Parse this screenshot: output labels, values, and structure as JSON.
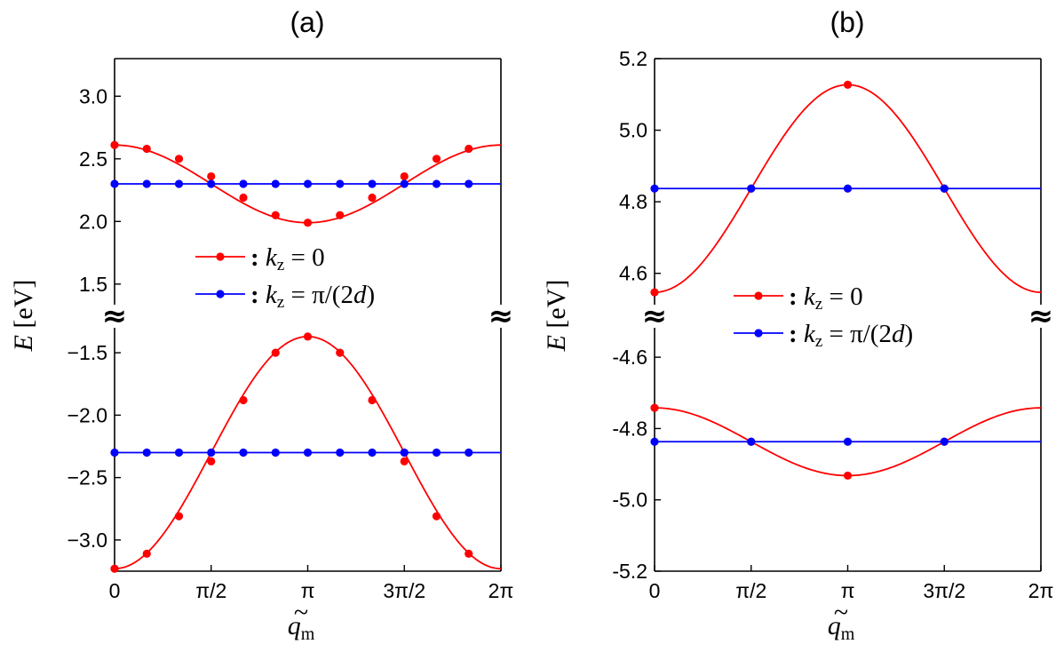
{
  "chart_data": [
    {
      "type": "line",
      "panel_label": "(a)",
      "ylabel_italic": "E",
      "ylabel_unit": "[eV]",
      "xlabel_symbol": "q",
      "xlabel_tilde": "~",
      "xlabel_sub": "m",
      "xlim": [
        0,
        6.2832
      ],
      "x_ticks": [
        {
          "value": 0,
          "label": "0"
        },
        {
          "value": 1.5708,
          "label": "π/2"
        },
        {
          "value": 3.1416,
          "label": "π"
        },
        {
          "value": 4.7124,
          "label": "3π/2"
        },
        {
          "value": 6.2832,
          "label": "2π"
        }
      ],
      "break_symbol": "≈",
      "upper": {
        "ylim": [
          1.3,
          3.3
        ],
        "y_ticks": [
          1.5,
          2.0,
          2.5,
          3.0
        ],
        "y_tick_labels": [
          "1.5",
          "2.0",
          "2.5",
          "3.0"
        ]
      },
      "lower": {
        "ylim": [
          -3.25,
          -1.25
        ],
        "y_ticks": [
          -3.0,
          -2.5,
          -2.0,
          -1.5
        ],
        "y_tick_labels": [
          "−3.0",
          "−2.5",
          "−2.0",
          "−1.5"
        ]
      },
      "legend": {
        "placement": "center",
        "entries": [
          {
            "prefix": ":",
            "k": "k",
            "sub": "z",
            "rest": " = 0"
          },
          {
            "prefix": ":",
            "k": "k",
            "sub": "z",
            "rest": " = π/(2",
            "italic_tail": "d",
            "close": ")"
          }
        ]
      },
      "series": [
        {
          "name": "k_z = 0",
          "color": "#ff0000",
          "segment": "upper",
          "form": "cos",
          "center": 2.3,
          "amplitude": 0.31,
          "phase_min_at_pi": true,
          "marker_x": [
            0,
            0.5236,
            1.0472,
            1.5708,
            2.0944,
            2.618,
            3.1416,
            3.6652,
            4.1888,
            4.7124,
            5.236,
            5.7596
          ],
          "marker_y": [
            2.61,
            2.58,
            2.5,
            2.36,
            2.19,
            2.05,
            1.99,
            2.05,
            2.19,
            2.36,
            2.5,
            2.58
          ]
        },
        {
          "name": "k_z = π/(2d)",
          "color": "#0000ff",
          "segment": "upper",
          "form": "flat",
          "center": 2.3,
          "marker_x": [
            0,
            0.5236,
            1.0472,
            1.5708,
            2.0944,
            2.618,
            3.1416,
            3.6652,
            4.1888,
            4.7124,
            5.236,
            5.7596
          ],
          "marker_y": [
            2.3,
            2.3,
            2.3,
            2.3,
            2.3,
            2.3,
            2.3,
            2.3,
            2.3,
            2.3,
            2.3,
            2.3
          ]
        },
        {
          "name": "k_z = 0",
          "color": "#ff0000",
          "segment": "lower",
          "form": "cos",
          "center": -2.3,
          "amplitude": -0.93,
          "phase_min_at_pi": false,
          "marker_x": [
            0,
            0.5236,
            1.0472,
            1.5708,
            2.0944,
            2.618,
            3.1416,
            3.6652,
            4.1888,
            4.7124,
            5.236,
            5.7596
          ],
          "marker_y": [
            -3.23,
            -3.11,
            -2.81,
            -2.37,
            -1.88,
            -1.5,
            -1.37,
            -1.5,
            -1.88,
            -2.37,
            -2.81,
            -3.11
          ]
        },
        {
          "name": "k_z = π/(2d)",
          "color": "#0000ff",
          "segment": "lower",
          "form": "flat",
          "center": -2.3,
          "marker_x": [
            0,
            0.5236,
            1.0472,
            1.5708,
            2.0944,
            2.618,
            3.1416,
            3.6652,
            4.1888,
            4.7124,
            5.236,
            5.7596
          ],
          "marker_y": [
            -2.3,
            -2.3,
            -2.3,
            -2.3,
            -2.3,
            -2.3,
            -2.3,
            -2.3,
            -2.3,
            -2.3,
            -2.3,
            -2.3
          ]
        }
      ]
    },
    {
      "type": "line",
      "panel_label": "(b)",
      "ylabel_italic": "E",
      "ylabel_unit": "[eV]",
      "xlabel_symbol": "q",
      "xlabel_tilde": "~",
      "xlabel_sub": "m",
      "xlim": [
        0,
        6.2832
      ],
      "x_ticks": [
        {
          "value": 0,
          "label": "0"
        },
        {
          "value": 1.5708,
          "label": "π/2"
        },
        {
          "value": 3.1416,
          "label": "π"
        },
        {
          "value": 4.7124,
          "label": "3π/2"
        },
        {
          "value": 6.2832,
          "label": "2π"
        }
      ],
      "break_symbol": "≈",
      "upper": {
        "ylim": [
          4.5,
          5.2
        ],
        "y_ticks": [
          4.6,
          4.8,
          5.0,
          5.2
        ],
        "y_tick_labels": [
          "4.6",
          "4.8",
          "5.0",
          "5.2"
        ]
      },
      "lower": {
        "ylim": [
          -5.2,
          -4.5
        ],
        "y_ticks": [
          -5.2,
          -5.0,
          -4.8,
          -4.6
        ],
        "y_tick_labels": [
          "-5.2",
          "-5.0",
          "-4.8",
          "-4.6"
        ]
      },
      "legend": {
        "placement": "center",
        "entries": [
          {
            "prefix": ":",
            "k": "k",
            "sub": "z",
            "rest": " = 0"
          },
          {
            "prefix": ":",
            "k": "k",
            "sub": "z",
            "rest": " = π/(2",
            "italic_tail": "d",
            "close": ")"
          }
        ]
      },
      "series": [
        {
          "name": "k_z = 0",
          "color": "#ff0000",
          "segment": "upper",
          "form": "cos",
          "center": 4.837,
          "amplitude": -0.29,
          "phase_min_at_pi": false,
          "marker_x": [
            0,
            1.5708,
            3.1416,
            4.7124
          ],
          "marker_y": [
            4.547,
            4.837,
            5.127,
            4.837
          ]
        },
        {
          "name": "k_z = π/(2d)",
          "color": "#0000ff",
          "segment": "upper",
          "form": "flat",
          "center": 4.837,
          "marker_x": [
            0,
            1.5708,
            3.1416,
            4.7124
          ],
          "marker_y": [
            4.837,
            4.837,
            4.837,
            4.837
          ]
        },
        {
          "name": "k_z = 0",
          "color": "#ff0000",
          "segment": "lower",
          "form": "cos",
          "center": -4.837,
          "amplitude": 0.095,
          "phase_min_at_pi": true,
          "marker_x": [
            0,
            1.5708,
            3.1416,
            4.7124
          ],
          "marker_y": [
            -4.742,
            -4.837,
            -4.932,
            -4.837
          ]
        },
        {
          "name": "k_z = π/(2d)",
          "color": "#0000ff",
          "segment": "lower",
          "form": "flat",
          "center": -4.837,
          "marker_x": [
            0,
            1.5708,
            3.1416,
            4.7124
          ],
          "marker_y": [
            -4.837,
            -4.837,
            -4.837,
            -4.837
          ]
        }
      ]
    }
  ]
}
